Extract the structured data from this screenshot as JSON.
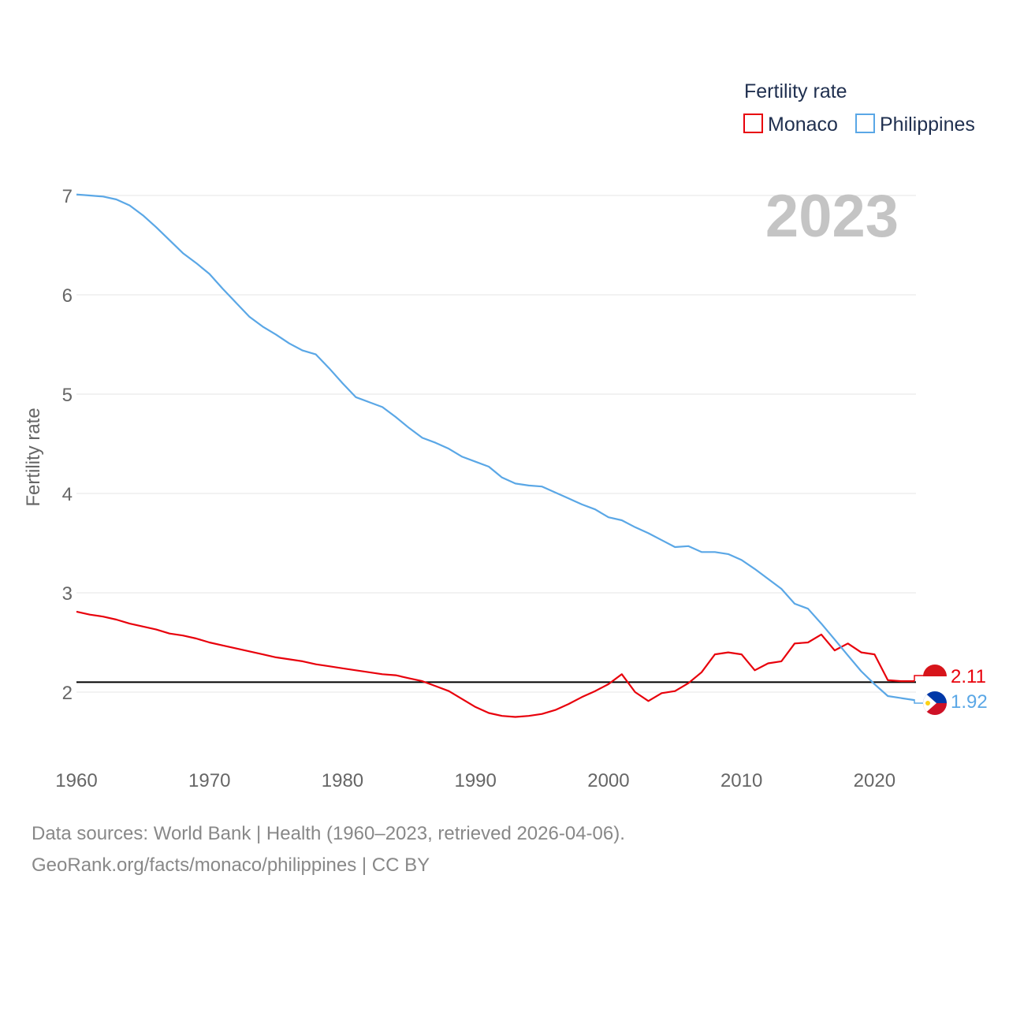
{
  "chart_data": {
    "type": "line",
    "title": "",
    "year_label": "2023",
    "legend_title": "Fertility rate",
    "ylabel": "Fertility rate",
    "xlabel": "",
    "xlim": [
      1960,
      2023
    ],
    "ylim": [
      1.5,
      7.2
    ],
    "yticks": [
      2,
      3,
      4,
      5,
      6,
      7
    ],
    "xticks": [
      1960,
      1970,
      1980,
      1990,
      2000,
      2010,
      2020
    ],
    "reference_line": 2.1,
    "x": [
      1960,
      1961,
      1962,
      1963,
      1964,
      1965,
      1966,
      1967,
      1968,
      1969,
      1970,
      1971,
      1972,
      1973,
      1974,
      1975,
      1976,
      1977,
      1978,
      1979,
      1980,
      1981,
      1982,
      1983,
      1984,
      1985,
      1986,
      1987,
      1988,
      1989,
      1990,
      1991,
      1992,
      1993,
      1994,
      1995,
      1996,
      1997,
      1998,
      1999,
      2000,
      2001,
      2002,
      2003,
      2004,
      2005,
      2006,
      2007,
      2008,
      2009,
      2010,
      2011,
      2012,
      2013,
      2014,
      2015,
      2016,
      2017,
      2018,
      2019,
      2020,
      2021,
      2022,
      2023
    ],
    "series": [
      {
        "name": "Monaco",
        "color": "#e8000b",
        "end_label": "2.11",
        "values": [
          2.81,
          2.78,
          2.76,
          2.73,
          2.69,
          2.66,
          2.63,
          2.59,
          2.57,
          2.54,
          2.5,
          2.47,
          2.44,
          2.41,
          2.38,
          2.35,
          2.33,
          2.31,
          2.28,
          2.26,
          2.24,
          2.22,
          2.2,
          2.18,
          2.17,
          2.14,
          2.11,
          2.06,
          2.01,
          1.93,
          1.85,
          1.79,
          1.76,
          1.75,
          1.76,
          1.78,
          1.82,
          1.88,
          1.95,
          2.01,
          2.08,
          2.18,
          2.0,
          1.91,
          1.99,
          2.01,
          2.09,
          2.2,
          2.38,
          2.4,
          2.38,
          2.22,
          2.29,
          2.31,
          2.49,
          2.5,
          2.58,
          2.42,
          2.49,
          2.4,
          2.38,
          2.12,
          2.11,
          2.11
        ]
      },
      {
        "name": "Philippines",
        "color": "#5aa7e6",
        "end_label": "1.92",
        "values": [
          7.01,
          7.0,
          6.99,
          6.96,
          6.9,
          6.8,
          6.68,
          6.55,
          6.42,
          6.32,
          6.21,
          6.06,
          5.92,
          5.78,
          5.68,
          5.6,
          5.51,
          5.44,
          5.4,
          5.26,
          5.11,
          4.97,
          4.92,
          4.87,
          4.77,
          4.66,
          4.56,
          4.51,
          4.45,
          4.37,
          4.32,
          4.27,
          4.16,
          4.1,
          4.08,
          4.07,
          4.01,
          3.95,
          3.89,
          3.84,
          3.76,
          3.73,
          3.66,
          3.6,
          3.53,
          3.46,
          3.47,
          3.41,
          3.41,
          3.39,
          3.33,
          3.24,
          3.14,
          3.04,
          2.89,
          2.84,
          2.69,
          2.53,
          2.37,
          2.21,
          2.08,
          1.96,
          1.94,
          1.92
        ]
      }
    ]
  },
  "footer": {
    "line1": "Data sources: World Bank | Health (1960–2023, retrieved 2026-04-06).",
    "line2": "GeoRank.org/facts/monaco/philippines | CC BY"
  }
}
